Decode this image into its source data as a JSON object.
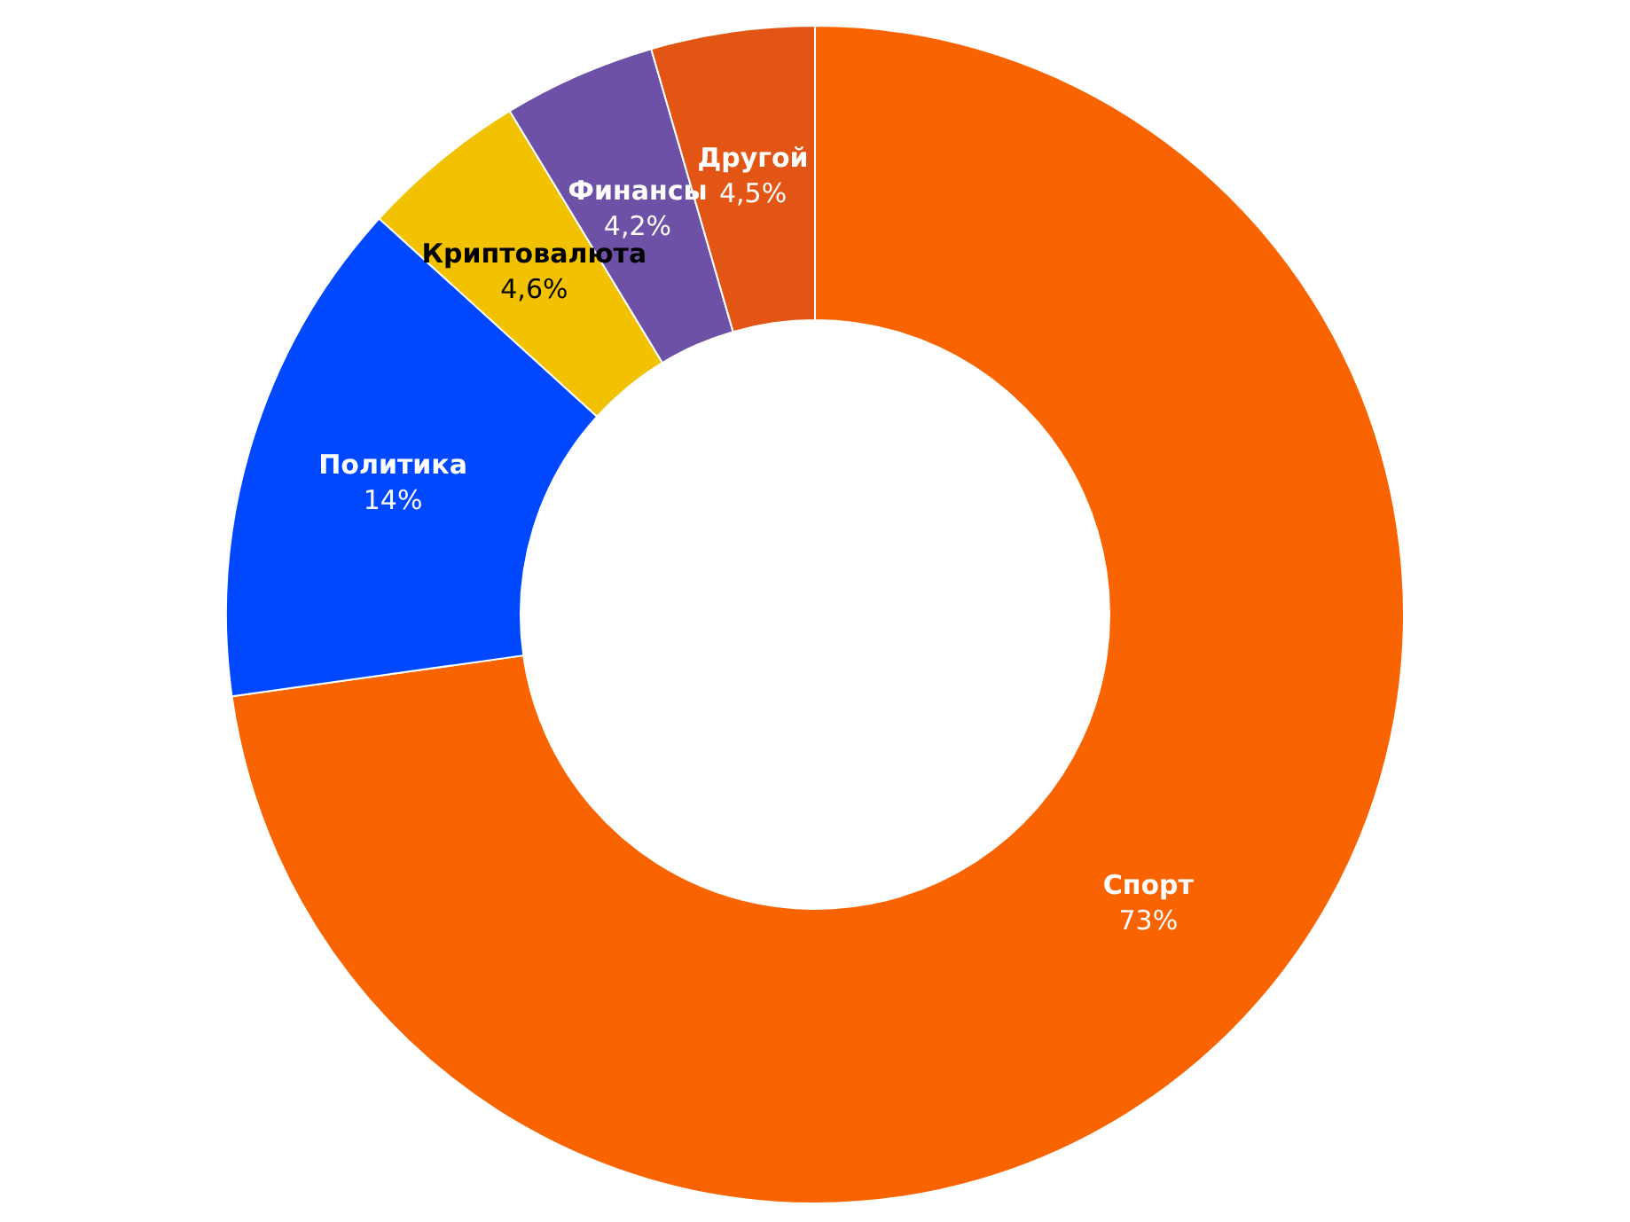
{
  "chart_data": {
    "type": "donut",
    "categories": [
      "Спорт",
      "Политика",
      "Криптовалюта",
      "Финансы",
      "Другой"
    ],
    "values": [
      73,
      14,
      4.6,
      4.2,
      4.5
    ],
    "colors": [
      "#f96400",
      "#0048ff",
      "#f2c200",
      "#6c51a6",
      "#e35514"
    ],
    "value_labels": [
      "73%",
      "14%",
      "4,6%",
      "4,2%",
      "4,5%"
    ],
    "legend": false
  }
}
